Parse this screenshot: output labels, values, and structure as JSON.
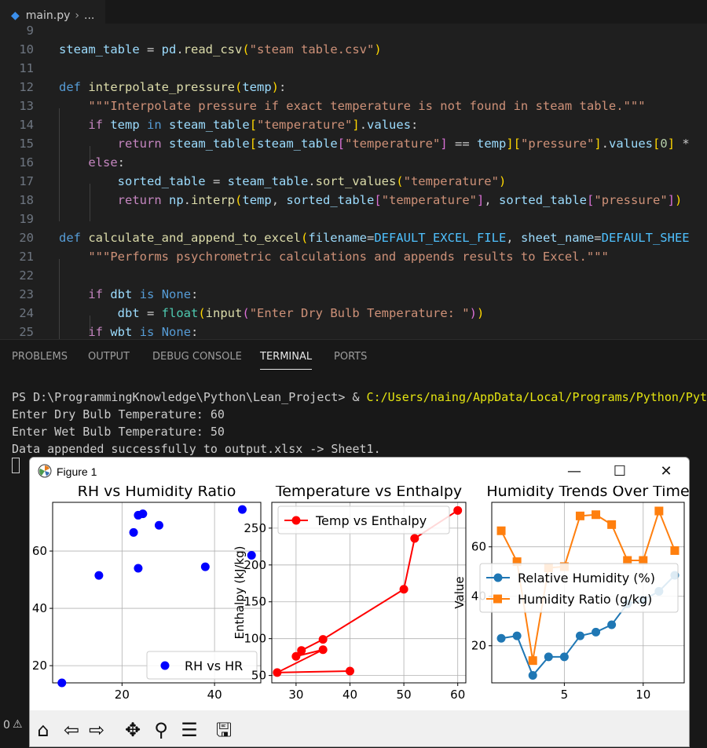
{
  "editor": {
    "tab_label": "main.py",
    "breadcrumb_sep": "›",
    "breadcrumb_more": "...",
    "line_numbers": [
      "9",
      "10",
      "11",
      "12",
      "13",
      "14",
      "15",
      "16",
      "17",
      "18",
      "19",
      "20",
      "21",
      "22",
      "23",
      "24",
      "25"
    ]
  },
  "panel": {
    "tabs": [
      "PROBLEMS",
      "OUTPUT",
      "DEBUG CONSOLE",
      "TERMINAL",
      "PORTS"
    ],
    "active_tab": "TERMINAL"
  },
  "terminal": {
    "prompt": "PS D:\\ProgrammingKnowledge\\Python\\Lean_Project> & ",
    "command": "C:/Users/naing/AppData/Local/Programs/Python/Python",
    "line_dbt": "Enter Dry Bulb Temperature: 60",
    "line_wbt": "Enter Wet Bulb Temperature: 50",
    "line_done": "Data appended successfully to output.xlsx -> Sheet1."
  },
  "status": {
    "count": "0"
  },
  "figure": {
    "title": "Figure 1",
    "minimize": "—",
    "maximize": "☐",
    "close": "✕",
    "toolbar": [
      "home-icon",
      "back-icon",
      "forward-icon",
      "pan-icon",
      "zoom-icon",
      "configure-icon",
      "save-icon"
    ]
  },
  "chart_data": [
    {
      "type": "scatter",
      "title": "RH vs Humidity Ratio",
      "xlabel": "",
      "ylabel": "",
      "xlim": [
        5,
        50
      ],
      "ylim": [
        14,
        77
      ],
      "xticks": [
        "20",
        "40"
      ],
      "yticks": [
        "20",
        "40",
        "60"
      ],
      "legend": "bottom-right",
      "color": "#0000ff",
      "series": [
        {
          "name": "RH vs HR",
          "x": [
            7,
            15,
            22.5,
            23.5,
            24.5,
            28,
            38,
            46,
            48,
            23.5
          ],
          "y": [
            14,
            51.5,
            66.5,
            72.5,
            73,
            69,
            54.5,
            74.5,
            58.5,
            54
          ]
        }
      ]
    },
    {
      "type": "line",
      "title": "Temperature vs Enthalpy",
      "xlabel": "",
      "ylabel": "Enthalpy (kJ/kg)",
      "xlim": [
        25.5,
        61.5
      ],
      "ylim": [
        40,
        285
      ],
      "xticks": [
        "30",
        "40",
        "50",
        "60"
      ],
      "yticks": [
        "50",
        "100",
        "150",
        "200",
        "250"
      ],
      "legend": "top-left",
      "color": "#ff0000",
      "series": [
        {
          "name": "Temp vs Enthalpy",
          "x": [
            40,
            26.5,
            35,
            30,
            31,
            35,
            50,
            52,
            60
          ],
          "y": [
            56,
            54,
            85,
            76,
            84,
            99,
            167,
            236,
            274
          ]
        }
      ]
    },
    {
      "type": "line",
      "title": "Humidity Trends Over Time",
      "xlabel": "",
      "ylabel": "Value",
      "xlim": [
        0.4,
        12.6
      ],
      "ylim": [
        5,
        78
      ],
      "xticks": [
        "5",
        "10"
      ],
      "yticks": [
        "20",
        "40",
        "60"
      ],
      "legend": "center-right",
      "series": [
        {
          "name": "Relative Humidity (%)",
          "color": "#1f77b4",
          "x": [
            1,
            2,
            3,
            4,
            5,
            6,
            7,
            8,
            9,
            10,
            11,
            12
          ],
          "y": [
            23,
            24,
            8,
            15.5,
            15.5,
            24,
            25.5,
            28.5,
            37,
            38.5,
            42,
            48.5
          ]
        },
        {
          "name": "Humidity Ratio (g/kg)",
          "color": "#ff7f0e",
          "x": [
            1,
            2,
            3,
            4,
            5,
            6,
            7,
            8,
            9,
            10,
            11,
            12
          ],
          "y": [
            66.5,
            54,
            14,
            51.5,
            52,
            72.5,
            73,
            69,
            54.5,
            54.5,
            74.5,
            58.5
          ]
        }
      ]
    }
  ]
}
